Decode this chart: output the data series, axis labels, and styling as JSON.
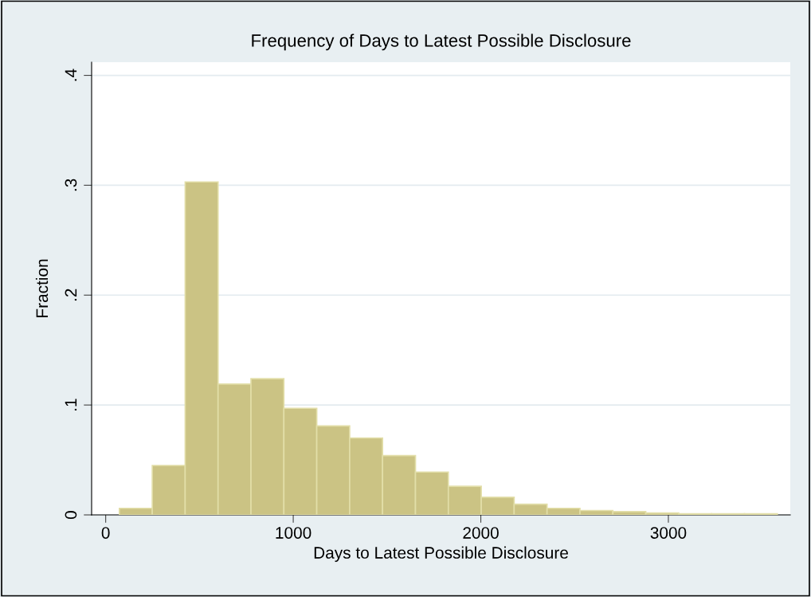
{
  "chart_data": {
    "type": "histogram",
    "title": "Frequency of Days to Latest Possible Disclosure",
    "xlabel": "Days to Latest Possible Disclosure",
    "ylabel": "Fraction",
    "bins": [
      73,
      248.4,
      423.8,
      599.2,
      774.6,
      950,
      1125.4,
      1300.8,
      1476.2,
      1651.6,
      1827,
      2002.4,
      2177.8,
      2353.2,
      2528.6,
      2704,
      2879.4,
      3054.8,
      3230.2,
      3405.6,
      3581
    ],
    "values": [
      0.006,
      0.045,
      0.303,
      0.119,
      0.124,
      0.097,
      0.081,
      0.07,
      0.054,
      0.039,
      0.026,
      0.016,
      0.0097,
      0.006,
      0.004,
      0.003,
      0.0017,
      0.001,
      0.001,
      0.001
    ],
    "color": "#cbc384",
    "xlim": [
      -75,
      3650
    ],
    "ylim": [
      0,
      0.412
    ],
    "xticks": [
      0,
      1000,
      2000,
      3000
    ],
    "yticks": [
      {
        "value": 0,
        "label": "0"
      },
      {
        "value": 0.1,
        "label": ".1"
      },
      {
        "value": 0.2,
        "label": ".2"
      },
      {
        "value": 0.3,
        "label": ".3"
      },
      {
        "value": 0.4,
        "label": ".4"
      }
    ],
    "grid": "y"
  }
}
